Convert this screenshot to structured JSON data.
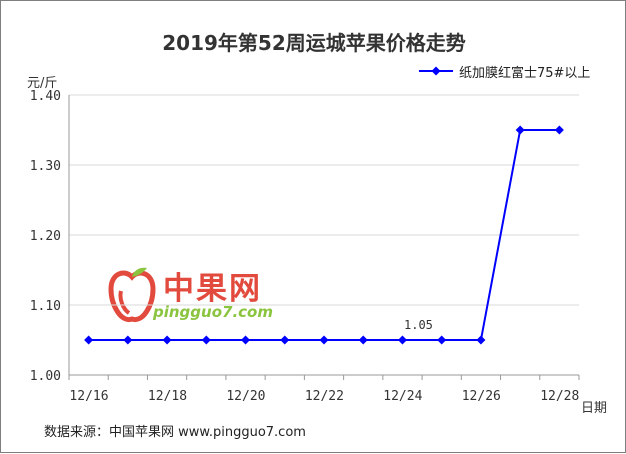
{
  "chart_data": {
    "type": "line",
    "title": "2019年第52周运城苹果价格走势",
    "ylabel": "元/斤",
    "xlabel": "日期",
    "categories": [
      "12/16",
      "12/17",
      "12/18",
      "12/19",
      "12/20",
      "12/21",
      "12/22",
      "12/23",
      "12/24",
      "12/25",
      "12/26",
      "12/27",
      "12/28"
    ],
    "x_tick_labels": [
      "12/16",
      "12/18",
      "12/20",
      "12/22",
      "12/24",
      "12/26",
      "12/28"
    ],
    "y_tick_labels": [
      "1.00",
      "1.10",
      "1.20",
      "1.30",
      "1.40"
    ],
    "ylim": [
      1.0,
      1.4
    ],
    "grid": "horizontal",
    "legend_position": "top-right",
    "series": [
      {
        "name": "纸加膜红富士75#以上",
        "color": "#0000ff",
        "values": [
          1.05,
          1.05,
          1.05,
          1.05,
          1.05,
          1.05,
          1.05,
          1.05,
          1.05,
          1.05,
          1.05,
          1.35,
          1.35
        ]
      }
    ],
    "annotations": [
      {
        "category": "12/24",
        "text": "1.05"
      }
    ]
  },
  "watermark": {
    "chinese": "中果网",
    "url": "pingguo7.com"
  },
  "footer": {
    "source": "数据来源：中国苹果网 www.pingguo7.com"
  }
}
